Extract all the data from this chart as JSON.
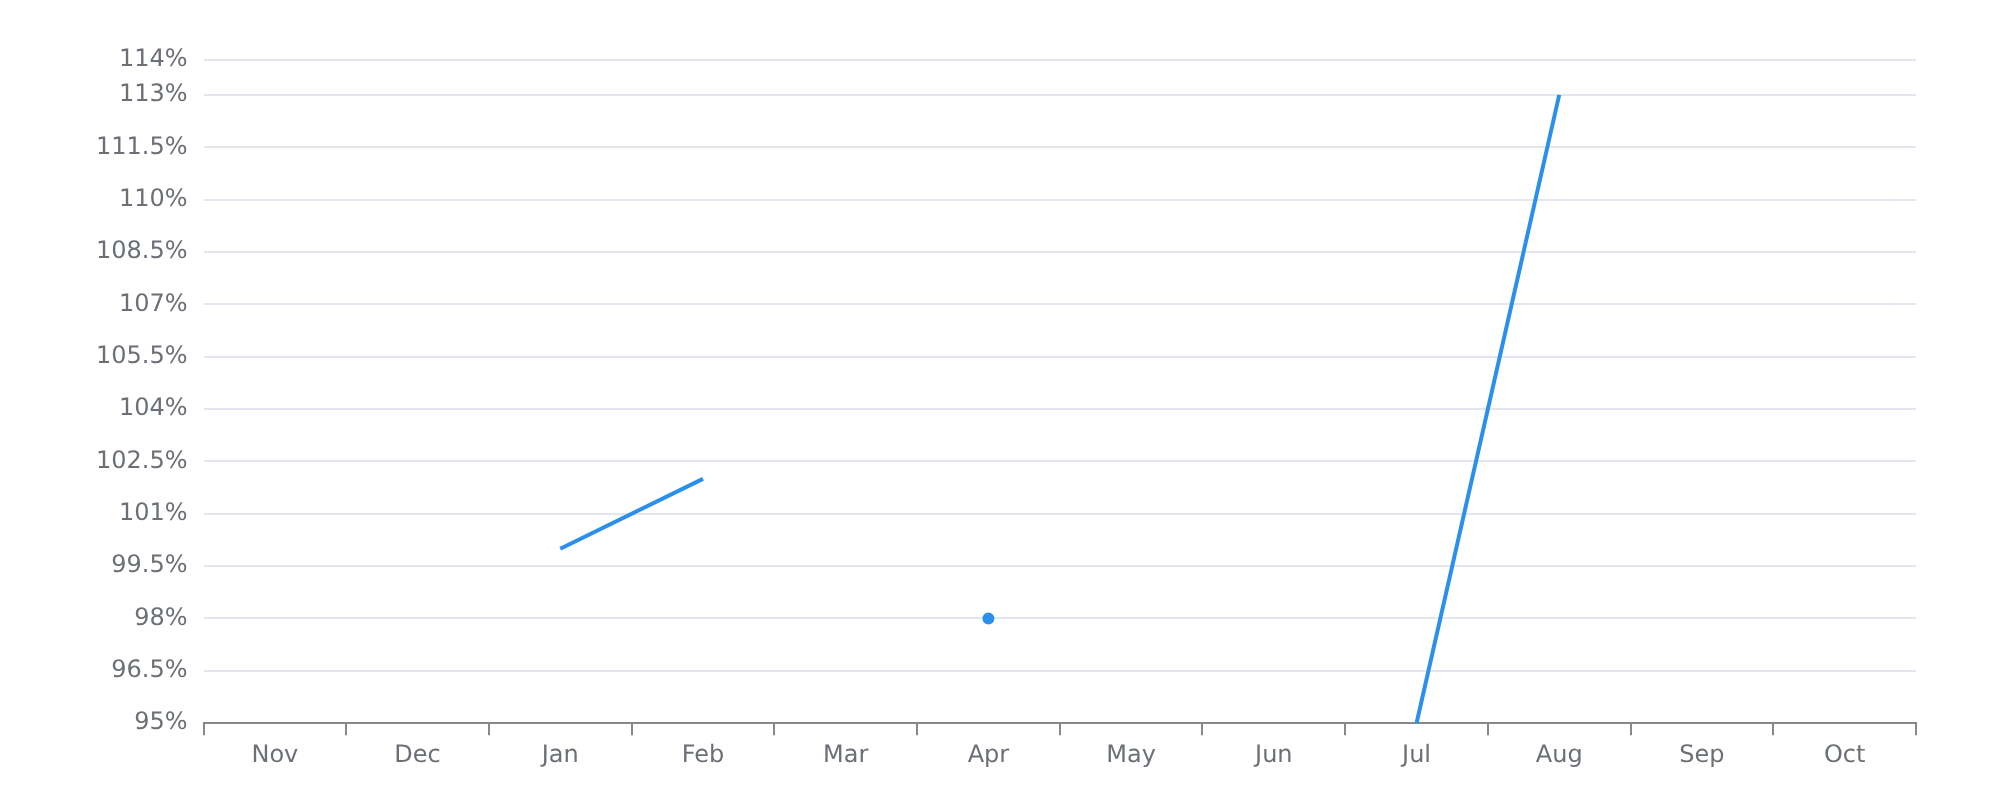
{
  "chart_data": {
    "type": "line",
    "categories": [
      "Nov",
      "Dec",
      "Jan",
      "Feb",
      "Mar",
      "Apr",
      "May",
      "Jun",
      "Jul",
      "Aug",
      "Sep",
      "Oct"
    ],
    "series": [
      {
        "color": "#2b90ec",
        "values": [
          null,
          null,
          100,
          102,
          null,
          98,
          null,
          null,
          95,
          113,
          null,
          null
        ]
      }
    ],
    "ylim": [
      95,
      114
    ],
    "yticks": [
      {
        "value": 95,
        "label": "95%"
      },
      {
        "value": 96.5,
        "label": "96.5%"
      },
      {
        "value": 98,
        "label": "98%"
      },
      {
        "value": 99.5,
        "label": "99.5%"
      },
      {
        "value": 101,
        "label": "101%"
      },
      {
        "value": 102.5,
        "label": "102.5%"
      },
      {
        "value": 104,
        "label": "104%"
      },
      {
        "value": 105.5,
        "label": "105.5%"
      },
      {
        "value": 107,
        "label": "107%"
      },
      {
        "value": 108.5,
        "label": "108.5%"
      },
      {
        "value": 110,
        "label": "110%"
      },
      {
        "value": 111.5,
        "label": "111.5%"
      },
      {
        "value": 113,
        "label": "113%"
      },
      {
        "value": 114,
        "label": "114%"
      }
    ],
    "grid": "y",
    "legend": false,
    "marker": "none",
    "line_style": "solid"
  }
}
